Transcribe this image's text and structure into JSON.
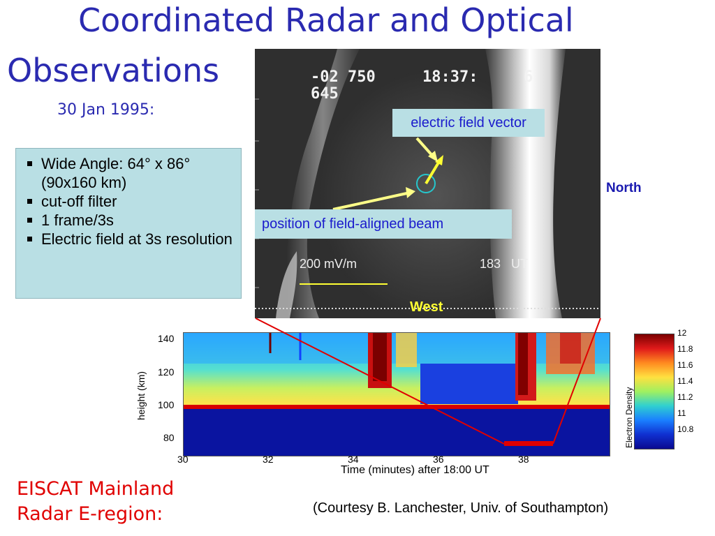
{
  "slide": {
    "title_line1": "Coordinated Radar and Optical",
    "title_line2": "Observations",
    "date": "30 Jan 1995:",
    "bullets": [
      "Wide Angle: 64° x 86° (90x160 km)",
      "cut-off filter",
      "1 frame/3s",
      "Electric field at 3s resolution"
    ],
    "image": {
      "overlay_line1": "-02 750",
      "overlay_time": "18:37:",
      "overlay_sec": "6",
      "overlay_line2": "645",
      "scale_label": "200 mV/m",
      "time_label": "183   UT",
      "callout_efield": "electric field vector",
      "callout_beam": "position of field-aligned beam",
      "north_label": "North",
      "west_label": "West"
    },
    "radar_plot": {
      "ylabel": "height (km)",
      "yticks": [
        "140",
        "120",
        "100",
        "80"
      ],
      "xlabel": "Time (minutes) after 18:00 UT",
      "colorbar_label": "Electron Density",
      "colorbar_ticks": [
        "12",
        "11.8",
        "11.6",
        "11.4",
        "11.2",
        "11",
        "10.8"
      ],
      "xticks": [
        "30",
        "32",
        "34",
        "36",
        "38"
      ]
    },
    "eiscat_line1": "EISCAT Mainland",
    "eiscat_line2": "Radar E-region:",
    "courtesy": "(Courtesy B. Lanchester, Univ. of Southampton)"
  }
}
